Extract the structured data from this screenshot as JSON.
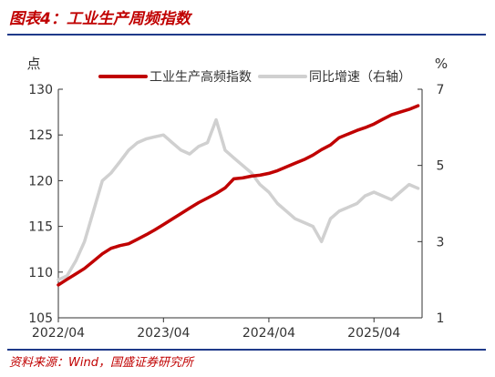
{
  "figure": {
    "title": "图表4：工业生产周频指数",
    "source": "资料来源：Wind，国盛证券研究所"
  },
  "colors": {
    "title_red": "#c00000",
    "rule_blue": "#1f3a8a",
    "series_primary": "#c00000",
    "series_secondary": "#d0d0d0",
    "axis": "#333333"
  },
  "chart_data": {
    "type": "line",
    "left_axis_unit": "点",
    "right_axis_unit": "%",
    "x_tick_labels": [
      "2022/04",
      "2023/04",
      "2024/04",
      "2025/04"
    ],
    "x_ticks": [
      "2022-04-01",
      "2023-04-01",
      "2024-04-01",
      "2025-04-01"
    ],
    "x_range": [
      "2022-04-01",
      "2025-09-15"
    ],
    "ylim_left": [
      105,
      130
    ],
    "yticks_left": [
      105,
      110,
      115,
      120,
      125,
      130
    ],
    "ylim_right": [
      1,
      7
    ],
    "yticks_right": [
      1,
      3,
      5,
      7
    ],
    "grid": false,
    "legend_position": "top",
    "series": [
      {
        "name": "工业生产高频指数",
        "axis": "left",
        "color": "#c00000",
        "points": [
          [
            "2022-04-01",
            108.6
          ],
          [
            "2022-05-01",
            109.2
          ],
          [
            "2022-06-01",
            109.8
          ],
          [
            "2022-07-01",
            110.4
          ],
          [
            "2022-08-01",
            111.2
          ],
          [
            "2022-09-01",
            112.0
          ],
          [
            "2022-10-01",
            112.6
          ],
          [
            "2022-11-01",
            112.9
          ],
          [
            "2022-12-01",
            113.1
          ],
          [
            "2023-01-01",
            113.6
          ],
          [
            "2023-02-01",
            114.1
          ],
          [
            "2023-03-01",
            114.6
          ],
          [
            "2023-04-01",
            115.2
          ],
          [
            "2023-05-01",
            115.8
          ],
          [
            "2023-06-01",
            116.4
          ],
          [
            "2023-07-01",
            117.0
          ],
          [
            "2023-08-01",
            117.6
          ],
          [
            "2023-09-01",
            118.1
          ],
          [
            "2023-10-01",
            118.6
          ],
          [
            "2023-11-01",
            119.2
          ],
          [
            "2023-12-01",
            120.2
          ],
          [
            "2024-01-01",
            120.3
          ],
          [
            "2024-02-01",
            120.5
          ],
          [
            "2024-03-01",
            120.6
          ],
          [
            "2024-04-01",
            120.8
          ],
          [
            "2024-05-01",
            121.1
          ],
          [
            "2024-06-01",
            121.5
          ],
          [
            "2024-07-01",
            121.9
          ],
          [
            "2024-08-01",
            122.3
          ],
          [
            "2024-09-01",
            122.8
          ],
          [
            "2024-10-01",
            123.4
          ],
          [
            "2024-11-01",
            123.9
          ],
          [
            "2024-12-01",
            124.7
          ],
          [
            "2025-01-01",
            125.1
          ],
          [
            "2025-02-01",
            125.5
          ],
          [
            "2025-03-01",
            125.8
          ],
          [
            "2025-04-01",
            126.2
          ],
          [
            "2025-05-01",
            126.7
          ],
          [
            "2025-06-01",
            127.2
          ],
          [
            "2025-07-01",
            127.5
          ],
          [
            "2025-08-01",
            127.8
          ],
          [
            "2025-09-01",
            128.2
          ]
        ]
      },
      {
        "name": "同比增速（右轴）",
        "axis": "right",
        "color": "#d0d0d0",
        "points": [
          [
            "2022-04-01",
            2.0
          ],
          [
            "2022-05-01",
            2.1
          ],
          [
            "2022-06-01",
            2.5
          ],
          [
            "2022-07-01",
            3.0
          ],
          [
            "2022-08-01",
            3.8
          ],
          [
            "2022-09-01",
            4.6
          ],
          [
            "2022-10-01",
            4.8
          ],
          [
            "2022-11-01",
            5.1
          ],
          [
            "2022-12-01",
            5.4
          ],
          [
            "2023-01-01",
            5.6
          ],
          [
            "2023-02-01",
            5.7
          ],
          [
            "2023-03-01",
            5.75
          ],
          [
            "2023-04-01",
            5.8
          ],
          [
            "2023-05-01",
            5.6
          ],
          [
            "2023-06-01",
            5.4
          ],
          [
            "2023-07-01",
            5.3
          ],
          [
            "2023-08-01",
            5.5
          ],
          [
            "2023-09-01",
            5.6
          ],
          [
            "2023-10-01",
            6.2
          ],
          [
            "2023-11-01",
            5.4
          ],
          [
            "2023-12-01",
            5.2
          ],
          [
            "2024-01-01",
            5.0
          ],
          [
            "2024-02-01",
            4.8
          ],
          [
            "2024-03-01",
            4.5
          ],
          [
            "2024-04-01",
            4.3
          ],
          [
            "2024-05-01",
            4.0
          ],
          [
            "2024-06-01",
            3.8
          ],
          [
            "2024-07-01",
            3.6
          ],
          [
            "2024-08-01",
            3.5
          ],
          [
            "2024-09-01",
            3.4
          ],
          [
            "2024-10-01",
            3.0
          ],
          [
            "2024-11-01",
            3.6
          ],
          [
            "2024-12-01",
            3.8
          ],
          [
            "2025-01-01",
            3.9
          ],
          [
            "2025-02-01",
            4.0
          ],
          [
            "2025-03-01",
            4.2
          ],
          [
            "2025-04-01",
            4.3
          ],
          [
            "2025-05-01",
            4.2
          ],
          [
            "2025-06-01",
            4.1
          ],
          [
            "2025-07-01",
            4.3
          ],
          [
            "2025-08-01",
            4.5
          ],
          [
            "2025-09-01",
            4.4
          ]
        ]
      }
    ]
  }
}
